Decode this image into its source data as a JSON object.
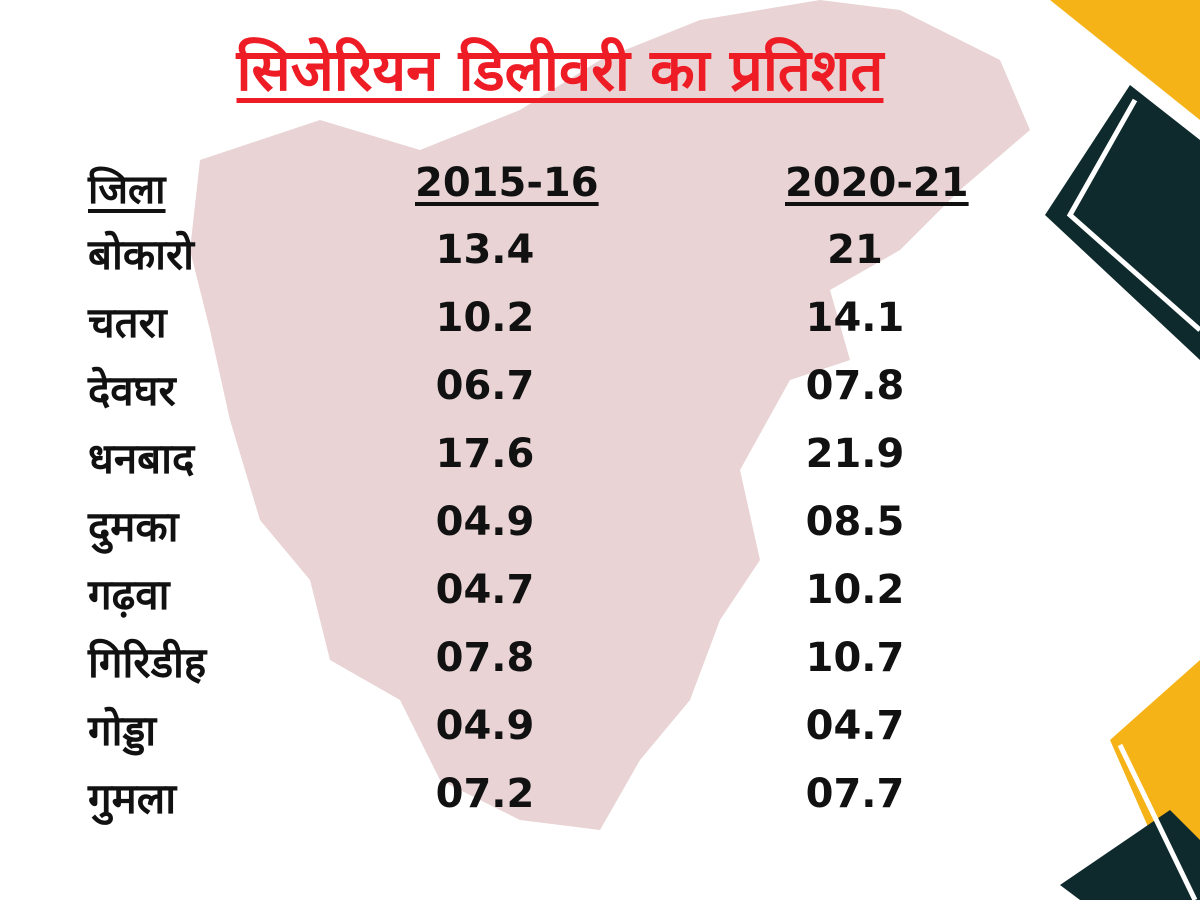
{
  "title": "सिजेरियन डिलीवरी का प्रतिशत",
  "table": {
    "header": [
      "जिला",
      "2015-16",
      "2020-21"
    ],
    "rows": [
      [
        "बोकारो",
        "13.4",
        "21"
      ],
      [
        "चतरा",
        "10.2",
        "14.1"
      ],
      [
        "देवघर",
        "06.7",
        "07.8"
      ],
      [
        "धनबाद",
        "17.6",
        "21.9"
      ],
      [
        "दुमका",
        "04.9",
        "08.5"
      ],
      [
        "गढ़वा",
        "04.7",
        "10.2"
      ],
      [
        "गिरिडीह",
        "07.8",
        "10.7"
      ],
      [
        "गोड्डा",
        "04.9",
        "04.7"
      ],
      [
        "गुमला",
        "07.2",
        "07.7"
      ]
    ]
  }
}
